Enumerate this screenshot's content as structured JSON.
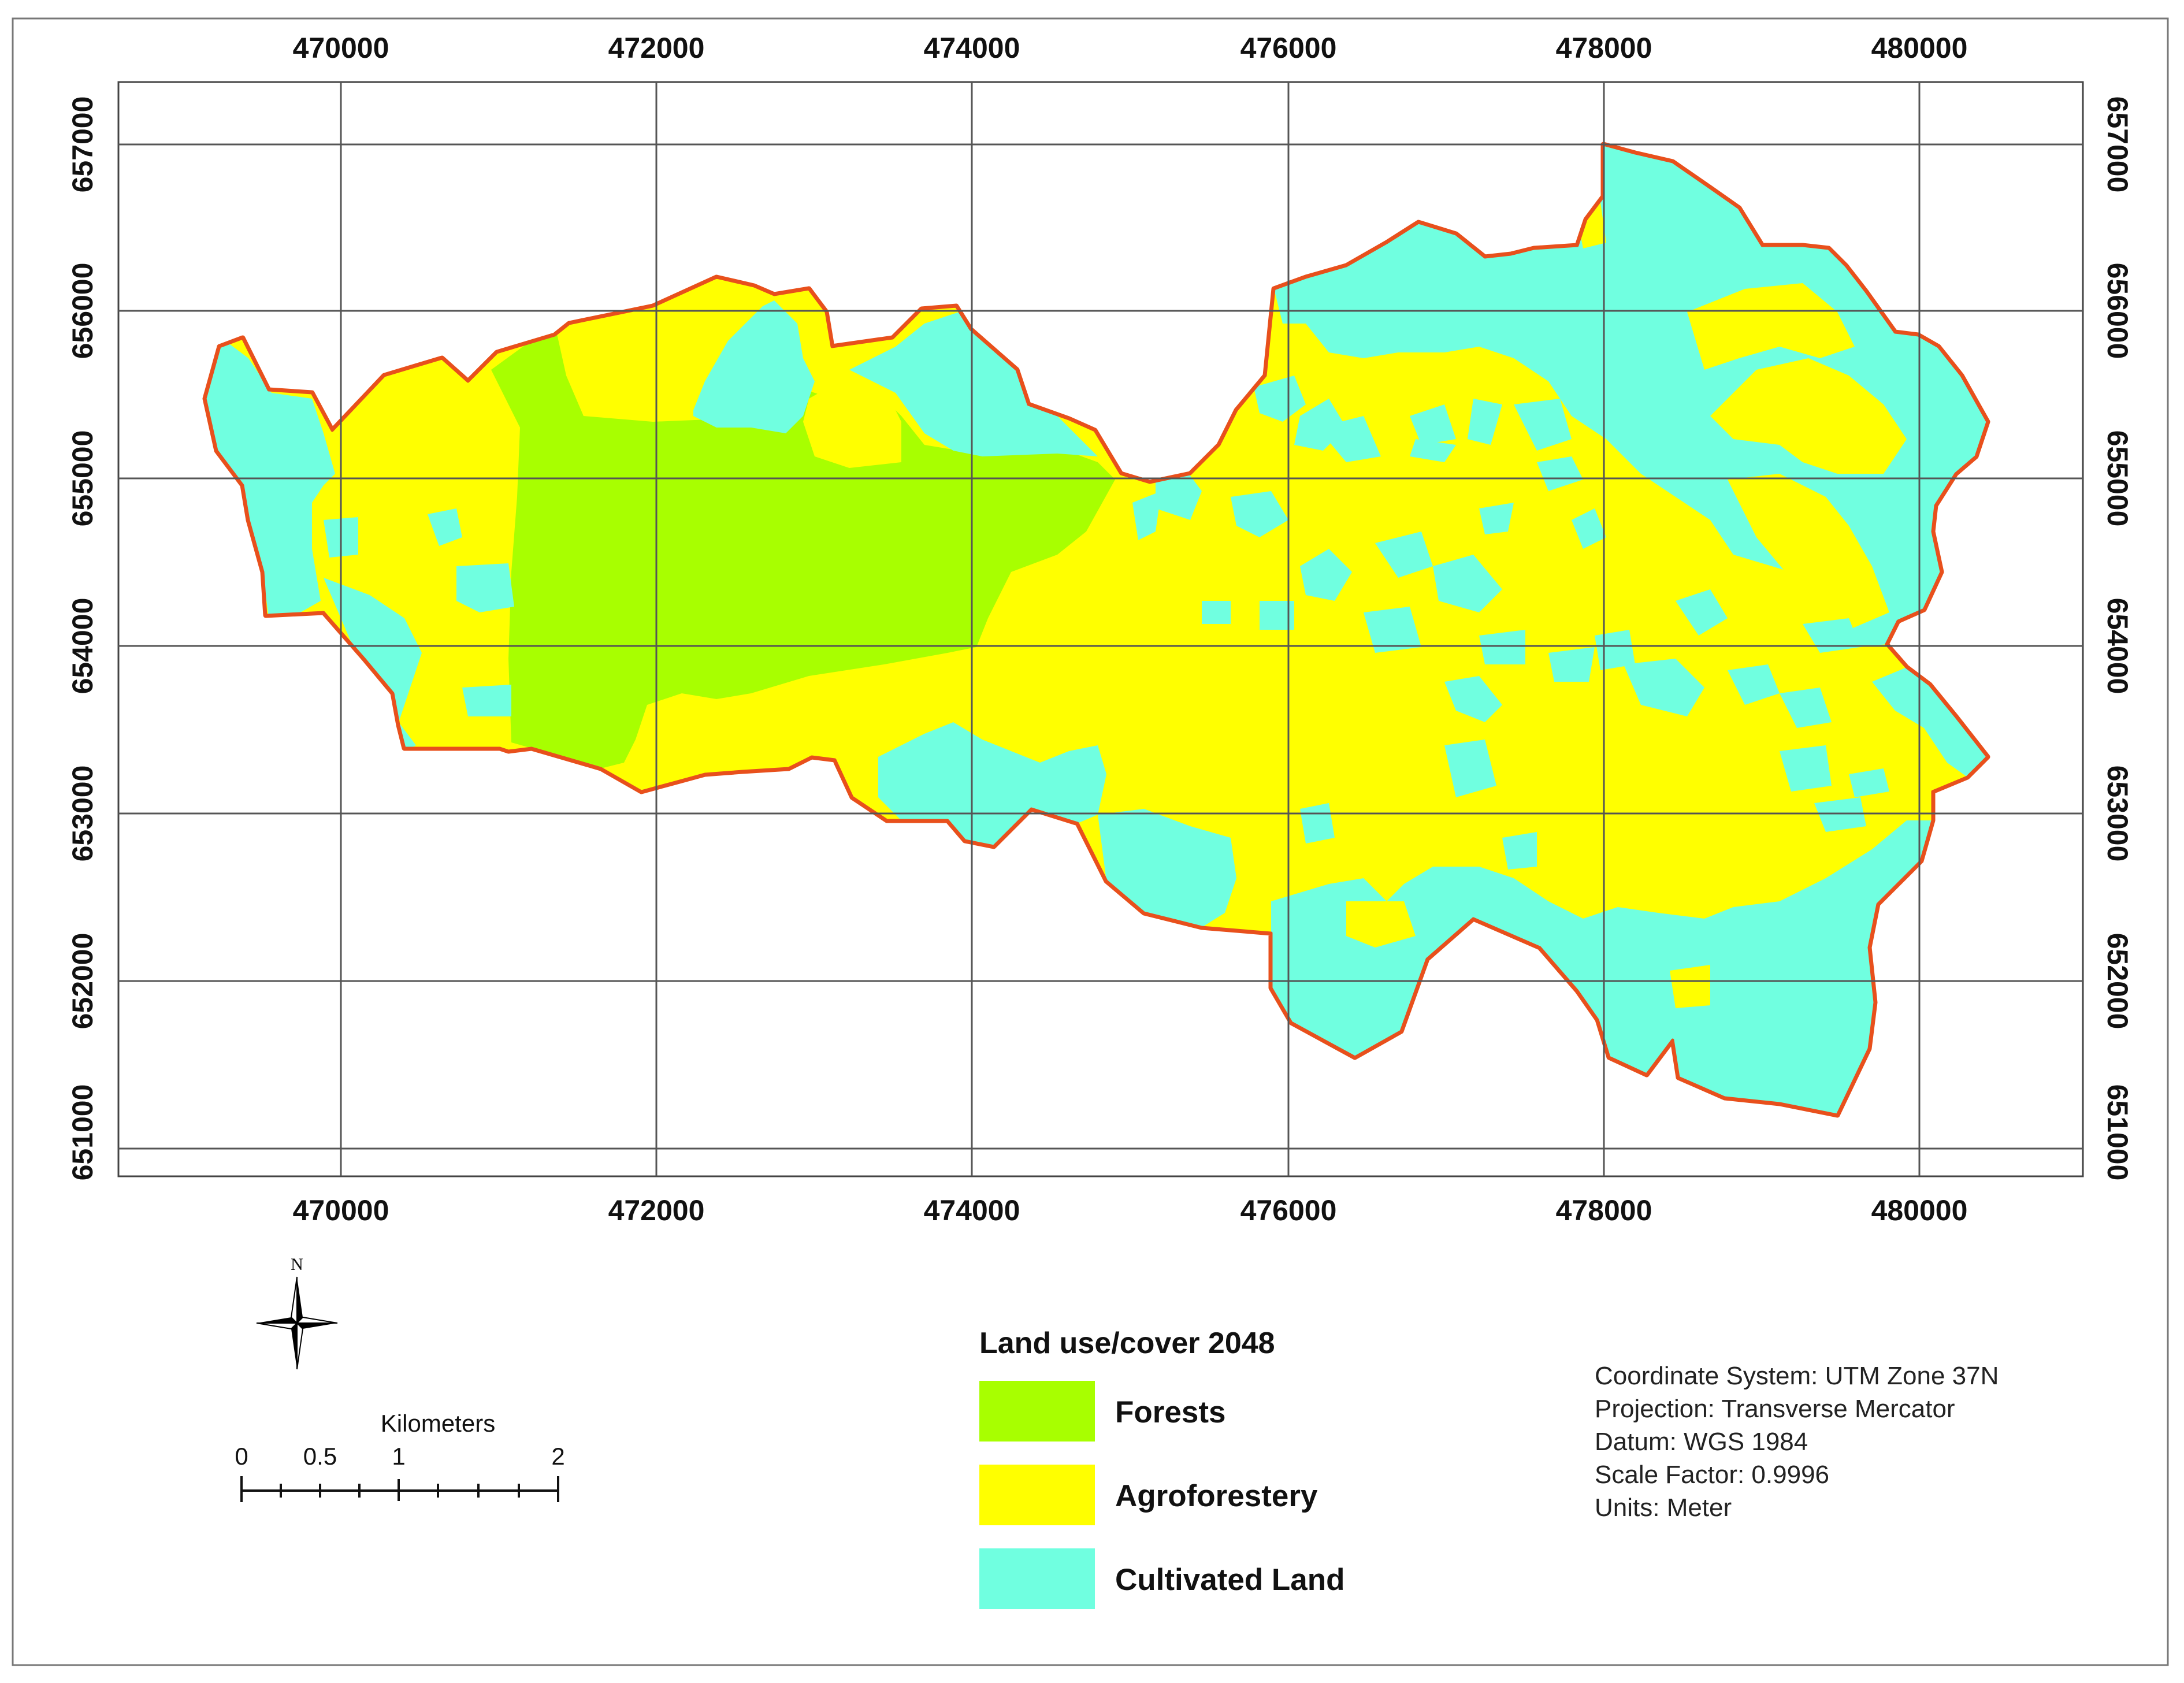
{
  "legend": {
    "title": "Land use/cover 2048",
    "items": [
      {
        "label": "Forests",
        "color": "#A8FF00"
      },
      {
        "label": "Agroforestery",
        "color": "#FFFF00"
      },
      {
        "label": "Cultivated Land",
        "color": "#70FFE0"
      }
    ]
  },
  "grid": {
    "x_ticks": [
      "470000",
      "472000",
      "474000",
      "476000",
      "478000",
      "480000"
    ],
    "y_ticks": [
      "657000",
      "656000",
      "655000",
      "654000",
      "653000",
      "652000",
      "651000"
    ]
  },
  "north_arrow": {
    "label": "N",
    "icon": "north-arrow-icon"
  },
  "scale_bar": {
    "title": "Kilometers",
    "labels": [
      "0",
      "0.5",
      "1",
      "2"
    ]
  },
  "info": {
    "line1": "Coordinate System: UTM Zone 37N",
    "line2": "Projection: Transverse Mercator",
    "line3": "Datum: WGS 1984",
    "line4": "Scale Factor: 0.9996",
    "line5": "Units: Meter"
  },
  "colors": {
    "boundary": "#E8501C",
    "grid_line": "#555555",
    "frame": "#444444"
  }
}
